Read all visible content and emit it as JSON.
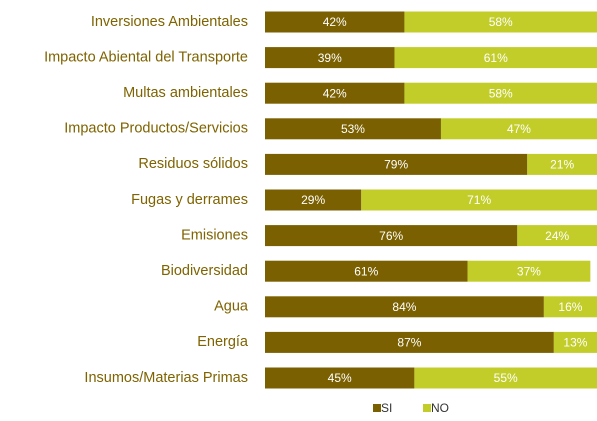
{
  "chart_data": {
    "type": "stacked-barh",
    "categories": [
      "Inversiones Ambientales",
      "Impacto Abiental del Transporte",
      "Multas ambientales",
      "Impacto Productos/Servicios",
      "Residuos sólidos",
      "Fugas y derrames",
      "Emisiones",
      "Biodiversidad",
      "Agua",
      "Energía",
      "Insumos/Materias Primas"
    ],
    "series": [
      {
        "name": "SI",
        "color": "#7a6000",
        "values": [
          42,
          39,
          42,
          53,
          79,
          29,
          76,
          61,
          84,
          87,
          45
        ],
        "value_labels": [
          "42%",
          "39%",
          "42%",
          "53%",
          "79%",
          "29%",
          "76%",
          "61%",
          "84%",
          "87%",
          "45%"
        ]
      },
      {
        "name": "NO",
        "color": "#c2cd2a",
        "values": [
          58,
          61,
          58,
          47,
          21,
          71,
          24,
          37,
          16,
          13,
          55
        ],
        "value_labels": [
          "58%",
          "61%",
          "58%",
          "47%",
          "21%",
          "71%",
          "24%",
          "37%",
          "16%",
          "13%",
          "55%"
        ]
      }
    ],
    "xlim": [
      0,
      100
    ]
  }
}
